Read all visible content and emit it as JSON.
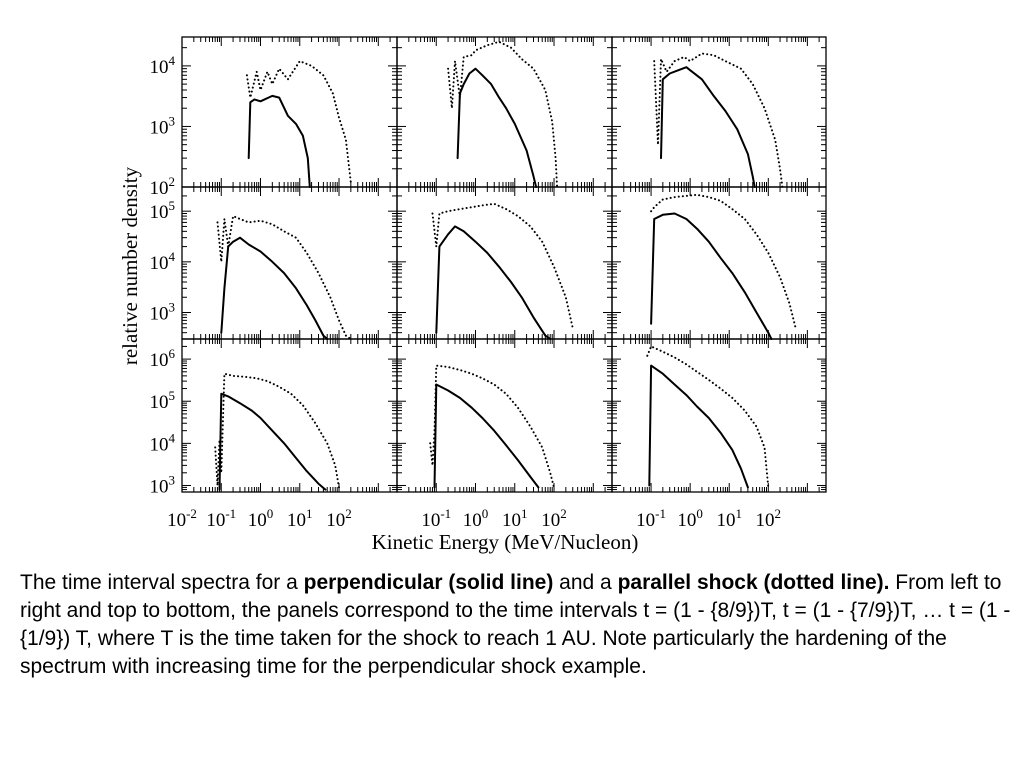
{
  "chart_data": {
    "type": "line",
    "layout": "3x3 panels, shared x and per-row y axes",
    "xlabel": "Kinetic Energy (MeV/Nucleon)",
    "ylabel": "relative number density",
    "x_scale": "log",
    "y_scale": "log",
    "x_tick_labels": [
      [
        "10-2",
        "10-1",
        "100",
        "101",
        "102"
      ],
      [
        "10-1",
        "100",
        "101",
        "102"
      ],
      [
        "10-1",
        "100",
        "101",
        "102"
      ]
    ],
    "row_y_tick_labels": [
      [
        "102",
        "103",
        "104"
      ],
      [
        "103",
        "104",
        "105"
      ],
      [
        "103",
        "104",
        "105",
        "106"
      ]
    ],
    "row_ylim": [
      [
        100,
        30000
      ],
      [
        300,
        300000
      ],
      [
        700,
        3000000
      ]
    ],
    "col_xlim": [
      [
        0.01,
        3000
      ],
      [
        0.01,
        3000
      ],
      [
        0.01,
        3000
      ]
    ],
    "series_styles": [
      "solid",
      "dotted"
    ],
    "panels": [
      {
        "row": 0,
        "col": 0,
        "solid": [
          [
            0.5,
            300
          ],
          [
            0.55,
            2500
          ],
          [
            0.7,
            2800
          ],
          [
            1,
            2600
          ],
          [
            2,
            3200
          ],
          [
            3,
            3000
          ],
          [
            5,
            1500
          ],
          [
            8,
            1100
          ],
          [
            12,
            700
          ],
          [
            16,
            300
          ],
          [
            18,
            100
          ]
        ],
        "dotted": [
          [
            0.45,
            7000
          ],
          [
            0.55,
            3000
          ],
          [
            0.8,
            8000
          ],
          [
            1,
            4000
          ],
          [
            1.5,
            8000
          ],
          [
            2,
            5000
          ],
          [
            3,
            9000
          ],
          [
            5,
            6000
          ],
          [
            10,
            12000
          ],
          [
            20,
            10000
          ],
          [
            40,
            7000
          ],
          [
            70,
            3500
          ],
          [
            100,
            1400
          ],
          [
            150,
            600
          ],
          [
            200,
            120
          ]
        ]
      },
      {
        "row": 0,
        "col": 1,
        "solid": [
          [
            0.35,
            300
          ],
          [
            0.4,
            3500
          ],
          [
            0.5,
            5000
          ],
          [
            0.7,
            7500
          ],
          [
            1,
            9000
          ],
          [
            1.5,
            7000
          ],
          [
            2.5,
            5000
          ],
          [
            4,
            3000
          ],
          [
            6,
            2000
          ],
          [
            10,
            1100
          ],
          [
            20,
            400
          ],
          [
            30,
            150
          ],
          [
            35,
            100
          ]
        ],
        "dotted": [
          [
            0.2,
            9000
          ],
          [
            0.25,
            2000
          ],
          [
            0.3,
            12000
          ],
          [
            0.4,
            3000
          ],
          [
            0.5,
            14000
          ],
          [
            0.8,
            15000
          ],
          [
            1,
            18000
          ],
          [
            2,
            22000
          ],
          [
            4,
            25000
          ],
          [
            8,
            20000
          ],
          [
            15,
            13000
          ],
          [
            30,
            9000
          ],
          [
            60,
            4000
          ],
          [
            90,
            1200
          ],
          [
            110,
            300
          ],
          [
            120,
            100
          ]
        ]
      },
      {
        "row": 0,
        "col": 2,
        "solid": [
          [
            0.18,
            300
          ],
          [
            0.2,
            6000
          ],
          [
            0.3,
            7500
          ],
          [
            0.5,
            8500
          ],
          [
            0.8,
            9500
          ],
          [
            1,
            8500
          ],
          [
            2,
            6000
          ],
          [
            4,
            3200
          ],
          [
            8,
            1800
          ],
          [
            16,
            900
          ],
          [
            30,
            350
          ],
          [
            40,
            150
          ],
          [
            45,
            100
          ]
        ],
        "dotted": [
          [
            0.12,
            12000
          ],
          [
            0.15,
            500
          ],
          [
            0.18,
            13000
          ],
          [
            0.25,
            8000
          ],
          [
            0.4,
            12000
          ],
          [
            0.7,
            14000
          ],
          [
            1,
            12000
          ],
          [
            2,
            16000
          ],
          [
            4,
            15000
          ],
          [
            8,
            12000
          ],
          [
            20,
            9000
          ],
          [
            40,
            5000
          ],
          [
            80,
            2000
          ],
          [
            150,
            600
          ],
          [
            200,
            200
          ],
          [
            230,
            100
          ]
        ]
      },
      {
        "row": 1,
        "col": 0,
        "solid": [
          [
            0.1,
            400
          ],
          [
            0.12,
            3000
          ],
          [
            0.15,
            20000
          ],
          [
            0.2,
            25000
          ],
          [
            0.3,
            30000
          ],
          [
            0.5,
            22000
          ],
          [
            1,
            16000
          ],
          [
            2,
            10000
          ],
          [
            4,
            6000
          ],
          [
            8,
            3000
          ],
          [
            15,
            1400
          ],
          [
            25,
            700
          ],
          [
            40,
            350
          ],
          [
            50,
            300
          ]
        ],
        "dotted": [
          [
            0.08,
            60000
          ],
          [
            0.1,
            10000
          ],
          [
            0.12,
            70000
          ],
          [
            0.15,
            20000
          ],
          [
            0.2,
            80000
          ],
          [
            0.3,
            70000
          ],
          [
            0.5,
            60000
          ],
          [
            1,
            65000
          ],
          [
            2,
            55000
          ],
          [
            4,
            40000
          ],
          [
            8,
            30000
          ],
          [
            15,
            15000
          ],
          [
            30,
            6000
          ],
          [
            60,
            2000
          ],
          [
            100,
            700
          ],
          [
            150,
            350
          ],
          [
            200,
            300
          ]
        ]
      },
      {
        "row": 1,
        "col": 1,
        "solid": [
          [
            0.1,
            400
          ],
          [
            0.12,
            20000
          ],
          [
            0.2,
            35000
          ],
          [
            0.3,
            50000
          ],
          [
            0.5,
            40000
          ],
          [
            1,
            25000
          ],
          [
            2,
            15000
          ],
          [
            4,
            8000
          ],
          [
            8,
            4000
          ],
          [
            15,
            2000
          ],
          [
            30,
            800
          ],
          [
            60,
            350
          ],
          [
            80,
            300
          ]
        ],
        "dotted": [
          [
            0.08,
            90000
          ],
          [
            0.1,
            20000
          ],
          [
            0.12,
            90000
          ],
          [
            0.2,
            100000
          ],
          [
            0.4,
            110000
          ],
          [
            0.8,
            120000
          ],
          [
            1.5,
            130000
          ],
          [
            3,
            140000
          ],
          [
            6,
            110000
          ],
          [
            12,
            80000
          ],
          [
            25,
            50000
          ],
          [
            50,
            25000
          ],
          [
            100,
            8000
          ],
          [
            200,
            2000
          ],
          [
            300,
            500
          ]
        ]
      },
      {
        "row": 1,
        "col": 2,
        "solid": [
          [
            0.1,
            600
          ],
          [
            0.12,
            70000
          ],
          [
            0.2,
            85000
          ],
          [
            0.4,
            90000
          ],
          [
            0.8,
            70000
          ],
          [
            1.5,
            45000
          ],
          [
            3,
            25000
          ],
          [
            6,
            12000
          ],
          [
            12,
            6000
          ],
          [
            25,
            2500
          ],
          [
            50,
            1000
          ],
          [
            100,
            400
          ],
          [
            120,
            300
          ]
        ],
        "dotted": [
          [
            0.1,
            100000
          ],
          [
            0.12,
            120000
          ],
          [
            0.2,
            170000
          ],
          [
            0.4,
            190000
          ],
          [
            0.8,
            200000
          ],
          [
            1.5,
            210000
          ],
          [
            3,
            190000
          ],
          [
            6,
            160000
          ],
          [
            12,
            110000
          ],
          [
            25,
            70000
          ],
          [
            50,
            35000
          ],
          [
            100,
            15000
          ],
          [
            200,
            5000
          ],
          [
            350,
            1500
          ],
          [
            500,
            500
          ]
        ]
      },
      {
        "row": 2,
        "col": 0,
        "solid": [
          [
            0.09,
            800
          ],
          [
            0.1,
            150000
          ],
          [
            0.15,
            130000
          ],
          [
            0.3,
            90000
          ],
          [
            0.6,
            60000
          ],
          [
            1,
            40000
          ],
          [
            2,
            20000
          ],
          [
            4,
            10000
          ],
          [
            8,
            4500
          ],
          [
            15,
            2200
          ],
          [
            30,
            1100
          ],
          [
            45,
            800
          ]
        ],
        "dotted": [
          [
            0.07,
            8000
          ],
          [
            0.08,
            1000
          ],
          [
            0.09,
            12000
          ],
          [
            0.1,
            2000
          ],
          [
            0.12,
            450000
          ],
          [
            0.2,
            400000
          ],
          [
            0.4,
            380000
          ],
          [
            0.8,
            350000
          ],
          [
            1.5,
            300000
          ],
          [
            3,
            220000
          ],
          [
            6,
            150000
          ],
          [
            12,
            80000
          ],
          [
            25,
            30000
          ],
          [
            50,
            10000
          ],
          [
            80,
            3000
          ],
          [
            100,
            900
          ]
        ]
      },
      {
        "row": 2,
        "col": 1,
        "solid": [
          [
            0.09,
            900
          ],
          [
            0.1,
            250000
          ],
          [
            0.2,
            180000
          ],
          [
            0.4,
            120000
          ],
          [
            0.8,
            70000
          ],
          [
            1.5,
            40000
          ],
          [
            3,
            20000
          ],
          [
            6,
            9000
          ],
          [
            12,
            4000
          ],
          [
            25,
            1600
          ],
          [
            40,
            900
          ]
        ],
        "dotted": [
          [
            0.07,
            10000
          ],
          [
            0.08,
            3000
          ],
          [
            0.09,
            20000
          ],
          [
            0.1,
            700000
          ],
          [
            0.2,
            650000
          ],
          [
            0.4,
            550000
          ],
          [
            0.8,
            450000
          ],
          [
            1.5,
            350000
          ],
          [
            3,
            250000
          ],
          [
            6,
            150000
          ],
          [
            12,
            70000
          ],
          [
            25,
            25000
          ],
          [
            50,
            8000
          ],
          [
            80,
            2000
          ],
          [
            100,
            900
          ]
        ]
      },
      {
        "row": 2,
        "col": 2,
        "solid": [
          [
            0.09,
            1000
          ],
          [
            0.1,
            700000
          ],
          [
            0.2,
            450000
          ],
          [
            0.4,
            250000
          ],
          [
            0.8,
            140000
          ],
          [
            1.5,
            75000
          ],
          [
            3,
            40000
          ],
          [
            6,
            18000
          ],
          [
            12,
            7000
          ],
          [
            20,
            2500
          ],
          [
            30,
            900
          ]
        ],
        "dotted": [
          [
            0.08,
            1200000
          ],
          [
            0.1,
            2000000
          ],
          [
            0.2,
            1500000
          ],
          [
            0.4,
            1100000
          ],
          [
            0.8,
            750000
          ],
          [
            1.5,
            500000
          ],
          [
            3,
            320000
          ],
          [
            6,
            200000
          ],
          [
            12,
            120000
          ],
          [
            25,
            60000
          ],
          [
            50,
            25000
          ],
          [
            80,
            8000
          ],
          [
            100,
            900
          ]
        ]
      }
    ]
  },
  "caption": {
    "text_1": "The time interval spectra for a ",
    "bold_1": "perpendicular (solid line)",
    "text_2": " and a ",
    "bold_2": "parallel shock (dotted line).",
    "text_3": " From left to right and top to bottom, the panels correspond to the time intervals t  = (1 - {8/9})T, t = (1 - {7/9})T, … t = (1 -{1/9}) T, where T is the time taken for the shock to reach 1 AU. Note particularly the hardening of the spectrum with increasing time for the perpendicular shock example."
  }
}
